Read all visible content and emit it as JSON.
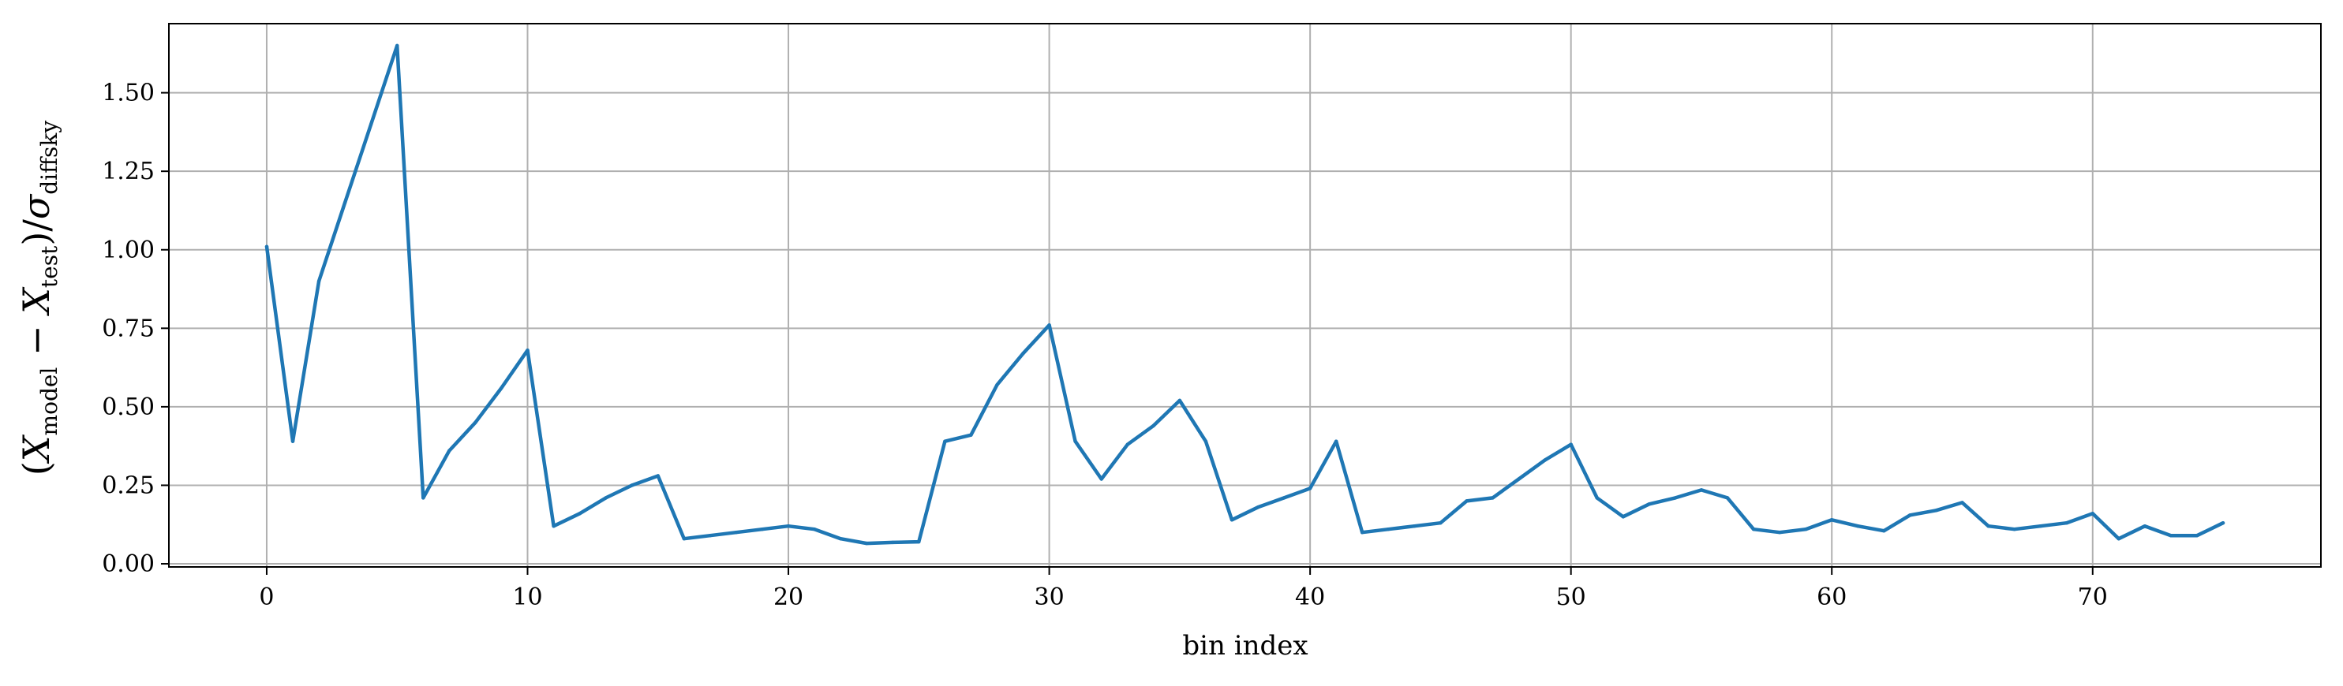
{
  "chart_data": {
    "type": "line",
    "title": "",
    "xlabel": "bin index",
    "ylabel": {
      "open": "(",
      "x1": "X",
      "sub1": "model",
      "minus": " − ",
      "x2": "X",
      "sub2": "test",
      "close": ")/",
      "sigma": "σ",
      "sub3": "diffsky"
    },
    "xlim": [
      -3.75,
      78.75
    ],
    "ylim": [
      -0.01,
      1.72
    ],
    "xticks": [
      0,
      10,
      20,
      30,
      40,
      50,
      60,
      70
    ],
    "yticks": [
      "0.00",
      "0.25",
      "0.50",
      "0.75",
      "1.00",
      "1.25",
      "1.50"
    ],
    "grid": true,
    "color": "#1f77b4",
    "series": [
      {
        "x": [
          0,
          1,
          2,
          3,
          4,
          5,
          6,
          7,
          8,
          9,
          10,
          11,
          12,
          13,
          14,
          15,
          16,
          17,
          18,
          19,
          20,
          21,
          22,
          23,
          24,
          25,
          26,
          27,
          28,
          29,
          30,
          31,
          32,
          33,
          34,
          35,
          36,
          37,
          38,
          39,
          40,
          41,
          42,
          43,
          44,
          45,
          46,
          47,
          48,
          49,
          50,
          51,
          52,
          53,
          54,
          55,
          56,
          57,
          58,
          59,
          60,
          61,
          62,
          63,
          64,
          65,
          66,
          67,
          68,
          69,
          70,
          71,
          72,
          73,
          74,
          75
        ],
        "values": [
          1.01,
          0.39,
          0.9,
          1.15,
          1.4,
          1.65,
          0.21,
          0.36,
          0.45,
          0.56,
          0.68,
          0.12,
          0.16,
          0.21,
          0.25,
          0.28,
          0.08,
          0.09,
          0.1,
          0.11,
          0.12,
          0.11,
          0.08,
          0.065,
          0.068,
          0.07,
          0.39,
          0.41,
          0.57,
          0.67,
          0.76,
          0.39,
          0.27,
          0.38,
          0.44,
          0.52,
          0.39,
          0.14,
          0.18,
          0.21,
          0.24,
          0.39,
          0.1,
          0.11,
          0.12,
          0.13,
          0.2,
          0.21,
          0.27,
          0.33,
          0.38,
          0.21,
          0.15,
          0.19,
          0.21,
          0.235,
          0.21,
          0.11,
          0.1,
          0.11,
          0.14,
          0.12,
          0.105,
          0.155,
          0.17,
          0.195,
          0.12,
          0.11,
          0.12,
          0.13,
          0.16,
          0.08,
          0.12,
          0.09,
          0.09,
          0.13
        ]
      }
    ]
  }
}
